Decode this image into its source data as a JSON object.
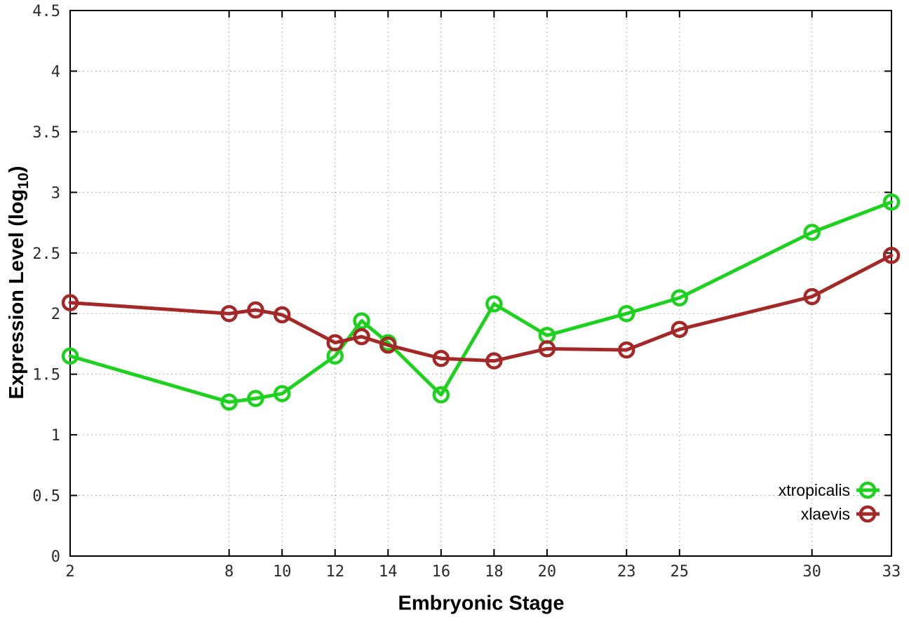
{
  "chart_data": {
    "type": "line",
    "title": "",
    "xlabel": "Embryonic Stage",
    "ylabel_prefix": "Expression Level (log",
    "ylabel_sub": "10",
    "ylabel_suffix": ")",
    "x": [
      2,
      8,
      9,
      10,
      12,
      13,
      14,
      16,
      18,
      20,
      23,
      25,
      30,
      33
    ],
    "xlim": [
      2,
      33
    ],
    "ylim": [
      0,
      4.5
    ],
    "x_tick_values": [
      2,
      8,
      10,
      12,
      14,
      16,
      18,
      20,
      23,
      25,
      30,
      33
    ],
    "x_tick_labels": [
      "2",
      "8",
      "10",
      "12",
      "14",
      "16",
      "18",
      "20",
      "23",
      "25",
      "30",
      "33"
    ],
    "y_tick_values": [
      0,
      0.5,
      1,
      1.5,
      2,
      2.5,
      3,
      3.5,
      4,
      4.5
    ],
    "y_tick_labels": [
      "0",
      "0.5",
      "1",
      "1.5",
      "2",
      "2.5",
      "3",
      "3.5",
      "4",
      "4.5"
    ],
    "grid": true,
    "legend_position": "inside-bottom-right",
    "series": [
      {
        "name": "xtropicalis",
        "color": "#1fd11f",
        "values": [
          1.65,
          1.27,
          1.3,
          1.34,
          1.65,
          1.94,
          1.76,
          1.33,
          2.08,
          1.82,
          2.0,
          2.13,
          2.67,
          2.92
        ]
      },
      {
        "name": "xlaevis",
        "color": "#a32929",
        "values": [
          2.09,
          2.0,
          2.03,
          1.99,
          1.76,
          1.81,
          1.74,
          1.63,
          1.61,
          1.71,
          1.7,
          1.87,
          2.14,
          2.48
        ]
      }
    ],
    "style": {
      "axis_color": "#000000",
      "grid_color": "#b5b5b5",
      "tick_label_color": "#2b2b2b",
      "marker": "open-circle"
    }
  }
}
